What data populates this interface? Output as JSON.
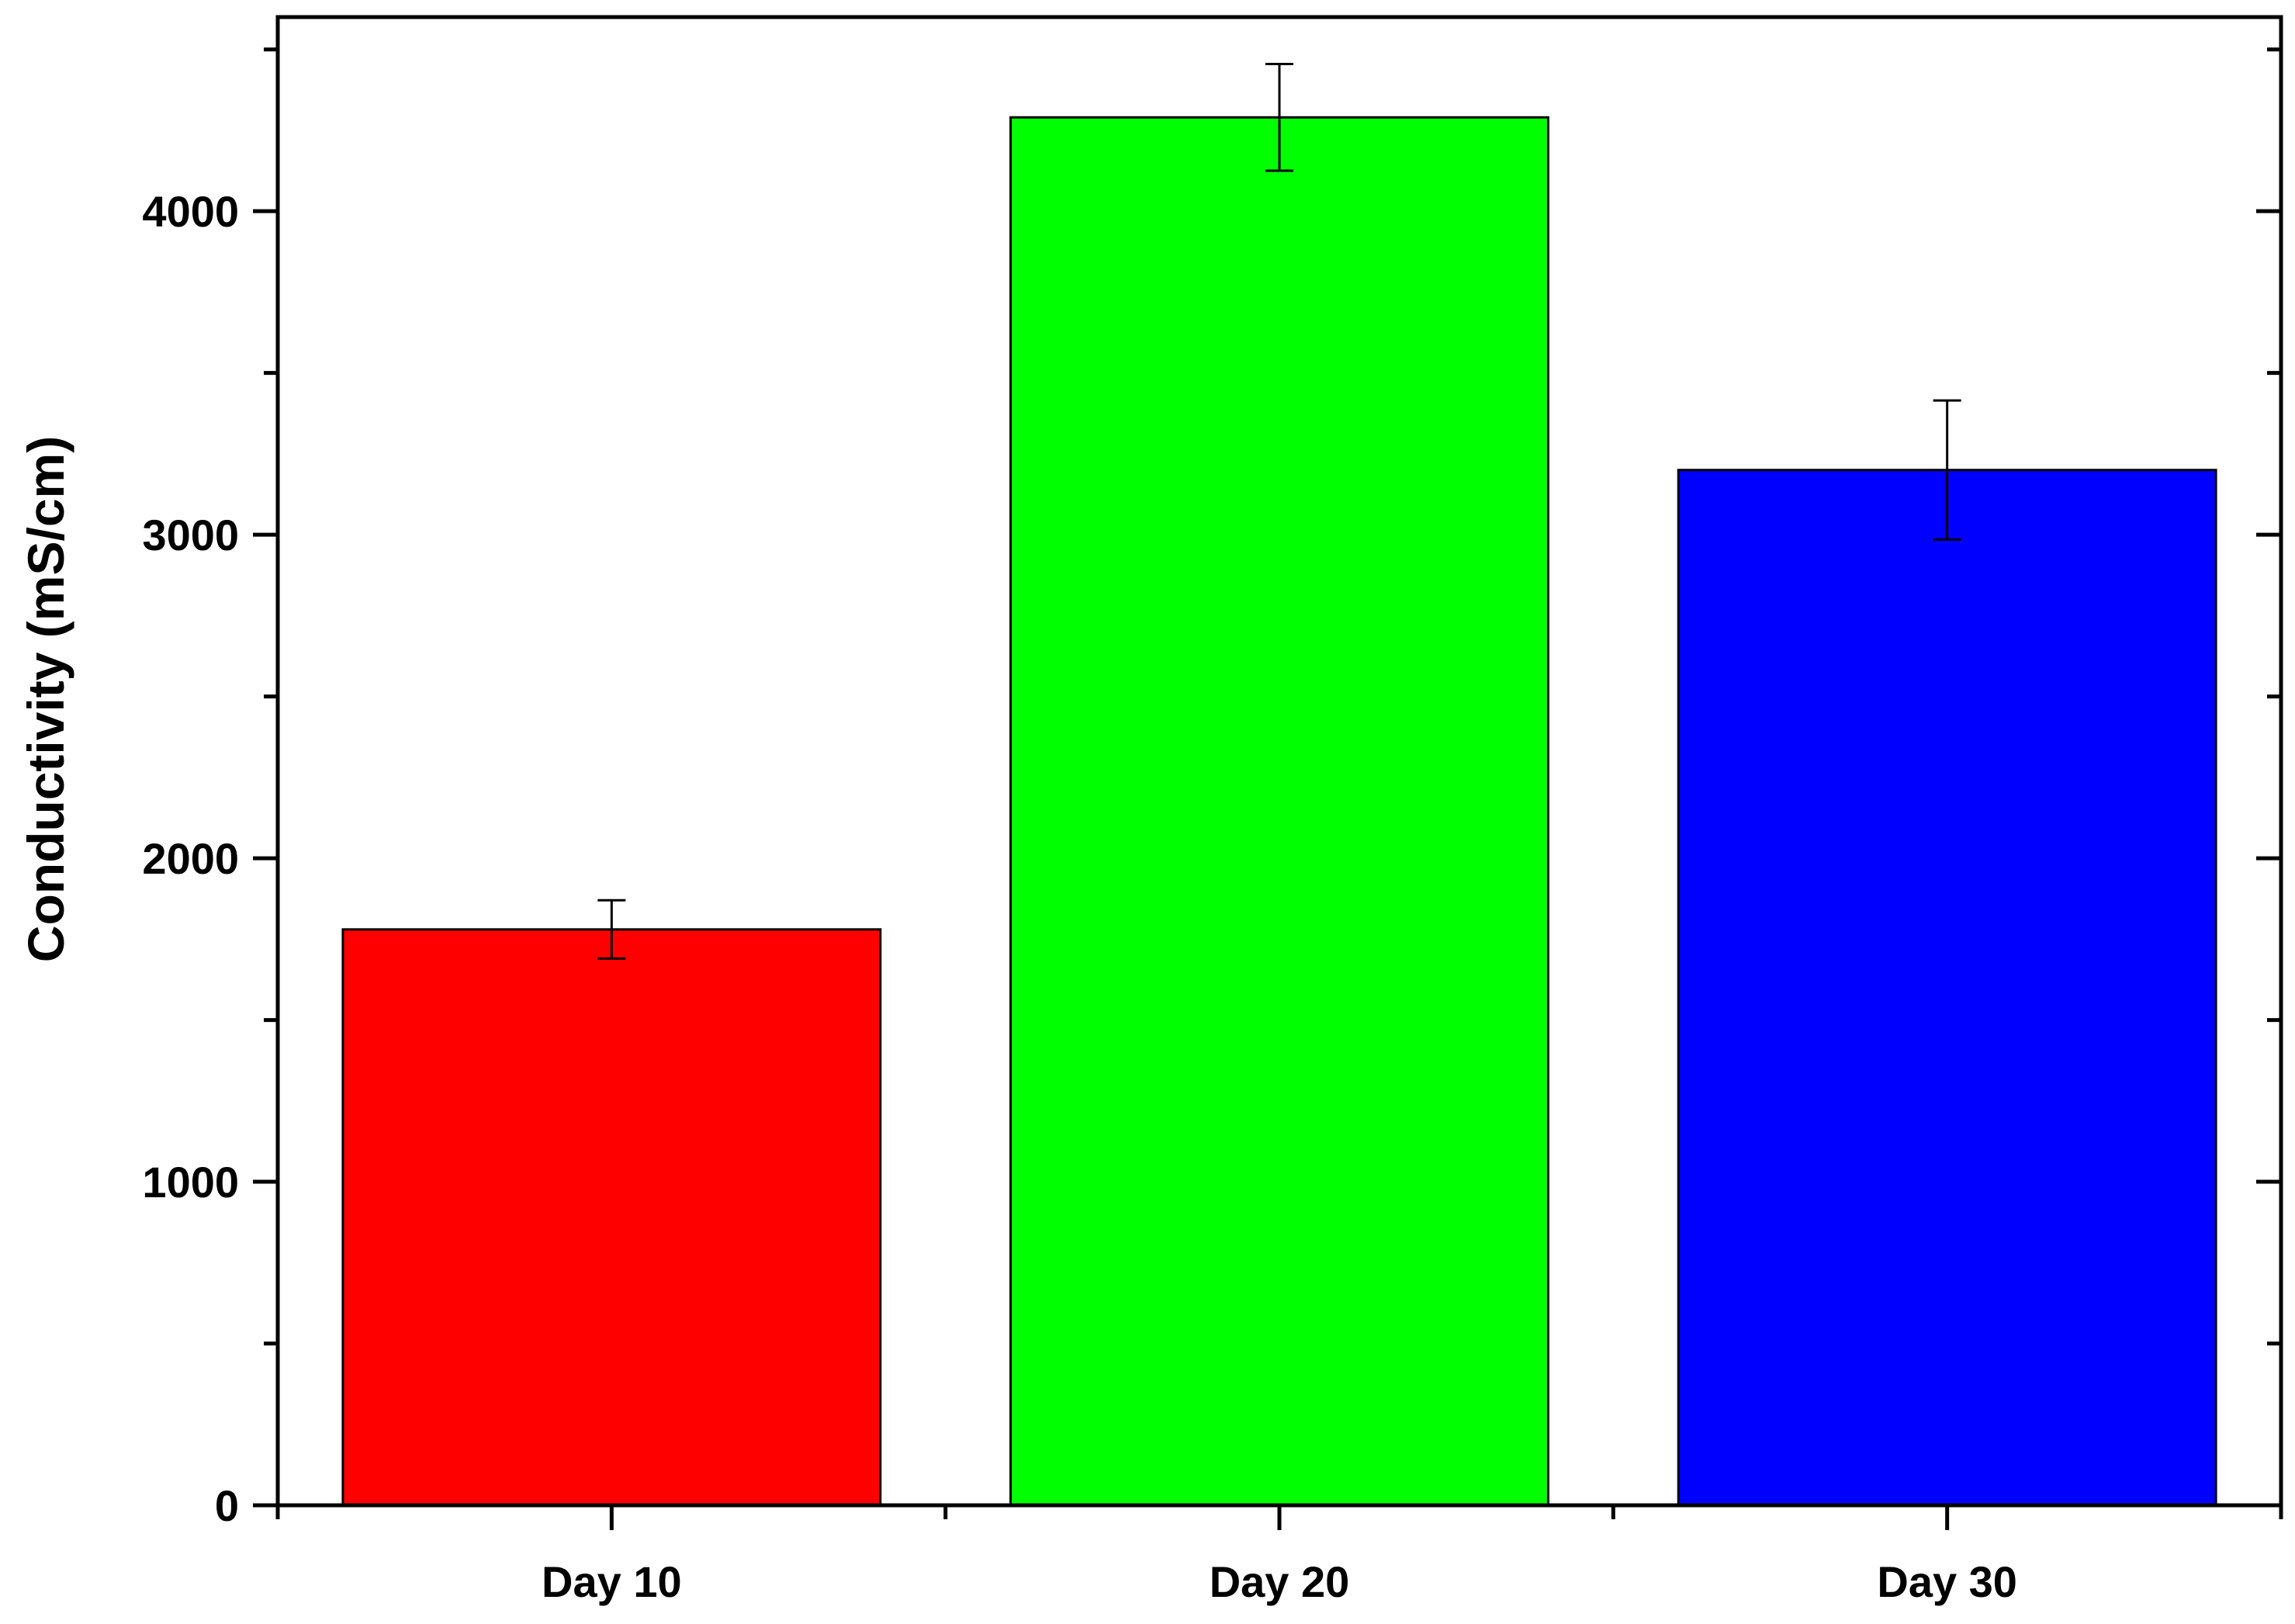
{
  "chart_data": {
    "type": "bar",
    "title": "",
    "xlabel": "",
    "ylabel": "Conductivity (mS/cm)",
    "categories": [
      "Day 10",
      "Day 20",
      "Day 30"
    ],
    "values": [
      1780,
      4290,
      3200
    ],
    "errors": [
      90,
      165,
      215
    ],
    "colors": [
      "#ff0000",
      "#00ff00",
      "#0000ff"
    ],
    "ylim": [
      0,
      4600
    ],
    "yticks": [
      0,
      1000,
      2000,
      3000,
      4000
    ],
    "ytick_labels": [
      "0",
      "1000",
      "2000",
      "3000",
      "4000"
    ],
    "grid": false,
    "legend": "none"
  }
}
